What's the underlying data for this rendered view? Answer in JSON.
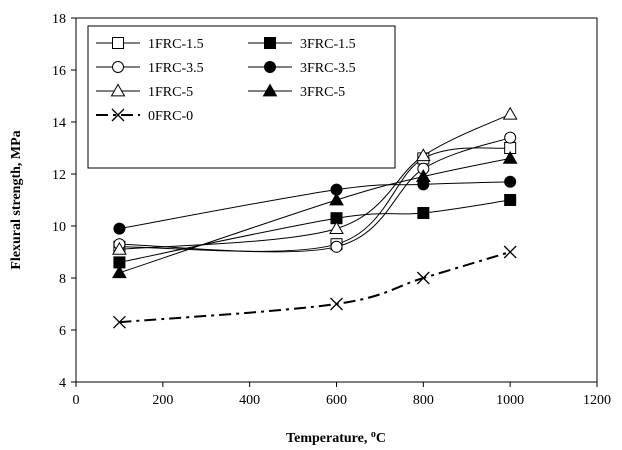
{
  "chart_data": {
    "type": "line",
    "title": "",
    "xlabel": "Temperature, °C",
    "ylabel": "Flexural strength, MPa",
    "xlim": [
      0,
      1200
    ],
    "ylim": [
      4,
      18
    ],
    "x_ticks": [
      0,
      200,
      400,
      600,
      800,
      1000,
      1200
    ],
    "y_ticks": [
      4,
      6,
      8,
      10,
      12,
      14,
      16,
      18
    ],
    "grid": false,
    "legend_position": "top-left",
    "x": [
      100,
      600,
      800,
      1000
    ],
    "series": [
      {
        "name": "1FRC-1.5",
        "values": [
          9.2,
          9.3,
          12.6,
          13.0
        ],
        "marker": "square-open",
        "line": "solid",
        "color": "#000000"
      },
      {
        "name": "3FRC-1.5",
        "values": [
          8.6,
          10.3,
          10.5,
          11.0
        ],
        "marker": "square-filled",
        "line": "solid",
        "color": "#000000"
      },
      {
        "name": "1FRC-3.5",
        "values": [
          9.3,
          9.2,
          12.2,
          13.4
        ],
        "marker": "circle-open",
        "line": "solid",
        "color": "#000000"
      },
      {
        "name": "3FRC-3.5",
        "values": [
          9.9,
          11.4,
          11.6,
          11.7
        ],
        "marker": "circle-filled",
        "line": "solid",
        "color": "#000000"
      },
      {
        "name": "1FRC-5",
        "values": [
          9.1,
          9.9,
          12.7,
          14.3
        ],
        "marker": "triangle-open",
        "line": "solid",
        "color": "#000000"
      },
      {
        "name": "3FRC-5",
        "values": [
          8.2,
          11.0,
          11.9,
          12.6
        ],
        "marker": "triangle-filled",
        "line": "solid",
        "color": "#000000"
      },
      {
        "name": "0FRC-0",
        "values": [
          6.3,
          7.0,
          8.0,
          9.0
        ],
        "marker": "x",
        "line": "dash-dot",
        "color": "#000000"
      }
    ]
  }
}
